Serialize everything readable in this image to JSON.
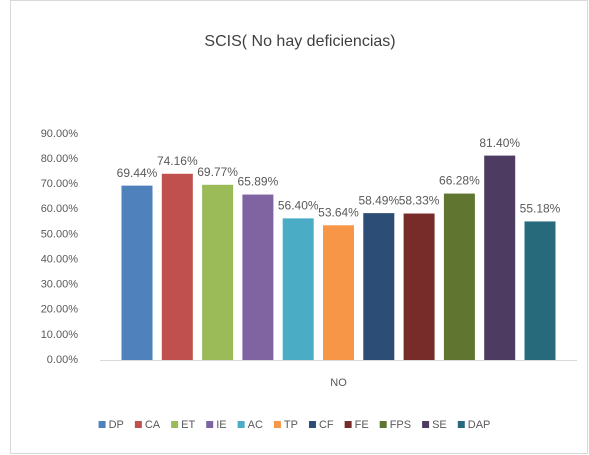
{
  "chart_data": {
    "type": "bar",
    "title": "SCIS( No hay deficiencias)",
    "categories": [
      "NO"
    ],
    "series": [
      {
        "name": "DP",
        "color": "#4f81bd",
        "values": [
          69.44
        ],
        "value_labels": [
          "69.44%"
        ]
      },
      {
        "name": "CA",
        "color": "#c0504d",
        "values": [
          74.16
        ],
        "value_labels": [
          "74.16%"
        ]
      },
      {
        "name": "ET",
        "color": "#9bbb59",
        "values": [
          69.77
        ],
        "value_labels": [
          "69.77%"
        ]
      },
      {
        "name": "IE",
        "color": "#8064a2",
        "values": [
          65.89
        ],
        "value_labels": [
          "65.89%"
        ]
      },
      {
        "name": "AC",
        "color": "#4bacc6",
        "values": [
          56.4
        ],
        "value_labels": [
          "56.40%"
        ]
      },
      {
        "name": "TP",
        "color": "#f79646",
        "values": [
          53.64
        ],
        "value_labels": [
          "53.64%"
        ]
      },
      {
        "name": "CF",
        "color": "#2c4d75",
        "values": [
          58.49
        ],
        "value_labels": [
          "58.49%"
        ]
      },
      {
        "name": "FE",
        "color": "#772c2a",
        "values": [
          58.33
        ],
        "value_labels": [
          "58.33%"
        ]
      },
      {
        "name": "FPS",
        "color": "#5f7530",
        "values": [
          66.28
        ],
        "value_labels": [
          "66.28%"
        ]
      },
      {
        "name": "SE",
        "color": "#4d3b62",
        "values": [
          81.4
        ],
        "value_labels": [
          "81.40%"
        ]
      },
      {
        "name": "DAP",
        "color": "#276a7c",
        "values": [
          55.18
        ],
        "value_labels": [
          "55.18%"
        ]
      }
    ],
    "ylim": [
      0,
      90
    ],
    "yticks": [
      {
        "value": 0,
        "label": "0.00%"
      },
      {
        "value": 10,
        "label": "10.00%"
      },
      {
        "value": 20,
        "label": "20.00%"
      },
      {
        "value": 30,
        "label": "30.00%"
      },
      {
        "value": 40,
        "label": "40.00%"
      },
      {
        "value": 50,
        "label": "50.00%"
      },
      {
        "value": 60,
        "label": "60.00%"
      },
      {
        "value": 70,
        "label": "70.00%"
      },
      {
        "value": 80,
        "label": "80.00%"
      },
      {
        "value": 90,
        "label": "90.00%"
      }
    ],
    "grid": false,
    "legend": "bottom"
  }
}
